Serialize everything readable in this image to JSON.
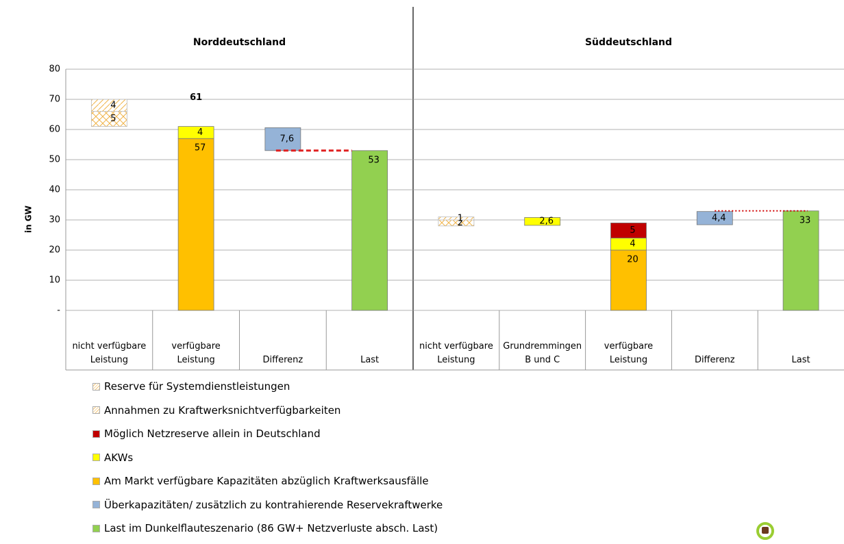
{
  "chart_data": [
    {
      "type": "waterfall",
      "title": "Norddeutschland",
      "y_label": "in GW",
      "categories": [
        "nicht verfügbare Leistung",
        "verfügbare Leistung",
        "Differenz",
        "Last"
      ],
      "base": [
        61,
        0,
        53,
        0
      ],
      "series": [
        {
          "name": "Reserve für Systemdienstleistungen",
          "color": "#f5c77a",
          "pattern": "hatch",
          "values": [
            4,
            null,
            null,
            null
          ]
        },
        {
          "name": "Annahmen zu Kraftwerksnichtverfügbarkeiten",
          "color": "#f5c77a",
          "pattern": "cross",
          "values": [
            5,
            null,
            null,
            null
          ]
        },
        {
          "name": "Möglich Netzreserve allein in Deutschland",
          "color": "#c00000",
          "values": [
            null,
            null,
            null,
            null
          ]
        },
        {
          "name": "AKWs",
          "color": "#ffff00",
          "values": [
            null,
            4,
            null,
            null
          ]
        },
        {
          "name": "Am Markt verfügbare Kapazitäten abzüglich Kraftwerksausfälle",
          "color": "#ffc000",
          "values": [
            null,
            57,
            null,
            null
          ]
        },
        {
          "name": "Überkapazitäten/ zusätzlich zu kontrahierende Reservekraftwerke",
          "color": "#95b3d7",
          "values": [
            null,
            null,
            7.6,
            null
          ],
          "value_labels": [
            null,
            null,
            "7,6",
            null
          ]
        },
        {
          "name": "Last im Dunkelflauteszenario (86 GW+ Netzverluste absch. Last)",
          "color": "#92d050",
          "values": [
            null,
            null,
            null,
            53
          ]
        }
      ],
      "totals": [
        null,
        61,
        null,
        null
      ],
      "connector": "dashed",
      "ylim": [
        0,
        80
      ],
      "yticks": [
        {
          "value": 0,
          "label": "-"
        },
        10,
        20,
        30,
        40,
        50,
        60,
        70,
        80
      ],
      "grid": true
    },
    {
      "type": "waterfall",
      "title": "Süddeutschland",
      "categories": [
        "nicht verfügbare Leistung",
        "Grundremmingen B und C",
        "verfügbare Leistung",
        "Differenz",
        "Last"
      ],
      "base": [
        28,
        28.2,
        0,
        28.4,
        0
      ],
      "series": [
        {
          "name": "Reserve für Systemdienstleistungen",
          "color": "#f5c77a",
          "pattern": "hatch",
          "values": [
            1,
            null,
            null,
            null,
            null
          ]
        },
        {
          "name": "Annahmen zu Kraftwerksnichtverfügbarkeiten",
          "color": "#f5c77a",
          "pattern": "cross",
          "values": [
            2,
            null,
            null,
            null,
            null
          ]
        },
        {
          "name": "Möglich Netzreserve allein in Deutschland",
          "color": "#c00000",
          "values": [
            null,
            null,
            5,
            null,
            null
          ]
        },
        {
          "name": "AKWs",
          "color": "#ffff00",
          "values": [
            null,
            2.6,
            4,
            null,
            null
          ],
          "value_labels": [
            null,
            "2,6",
            null,
            null,
            null
          ]
        },
        {
          "name": "Am Markt verfügbare Kapazitäten abzüglich Kraftwerksausfälle",
          "color": "#ffc000",
          "values": [
            null,
            null,
            20,
            null,
            null
          ]
        },
        {
          "name": "Überkapazitäten/ zusätzlich zu kontrahierende Reservekraftwerke",
          "color": "#95b3d7",
          "values": [
            null,
            null,
            null,
            4.4,
            null
          ],
          "value_labels": [
            null,
            null,
            null,
            "4,4",
            null
          ]
        },
        {
          "name": "Last im Dunkelflauteszenario (86 GW+ Netzverluste absch. Last)",
          "color": "#92d050",
          "values": [
            null,
            null,
            null,
            null,
            33
          ]
        }
      ],
      "connector": "dotted",
      "ylim": [
        0,
        80
      ],
      "yticks": [
        {
          "value": 0,
          "label": "-"
        },
        10,
        20,
        30,
        40,
        50,
        60,
        70,
        80
      ],
      "grid": true
    }
  ]
}
